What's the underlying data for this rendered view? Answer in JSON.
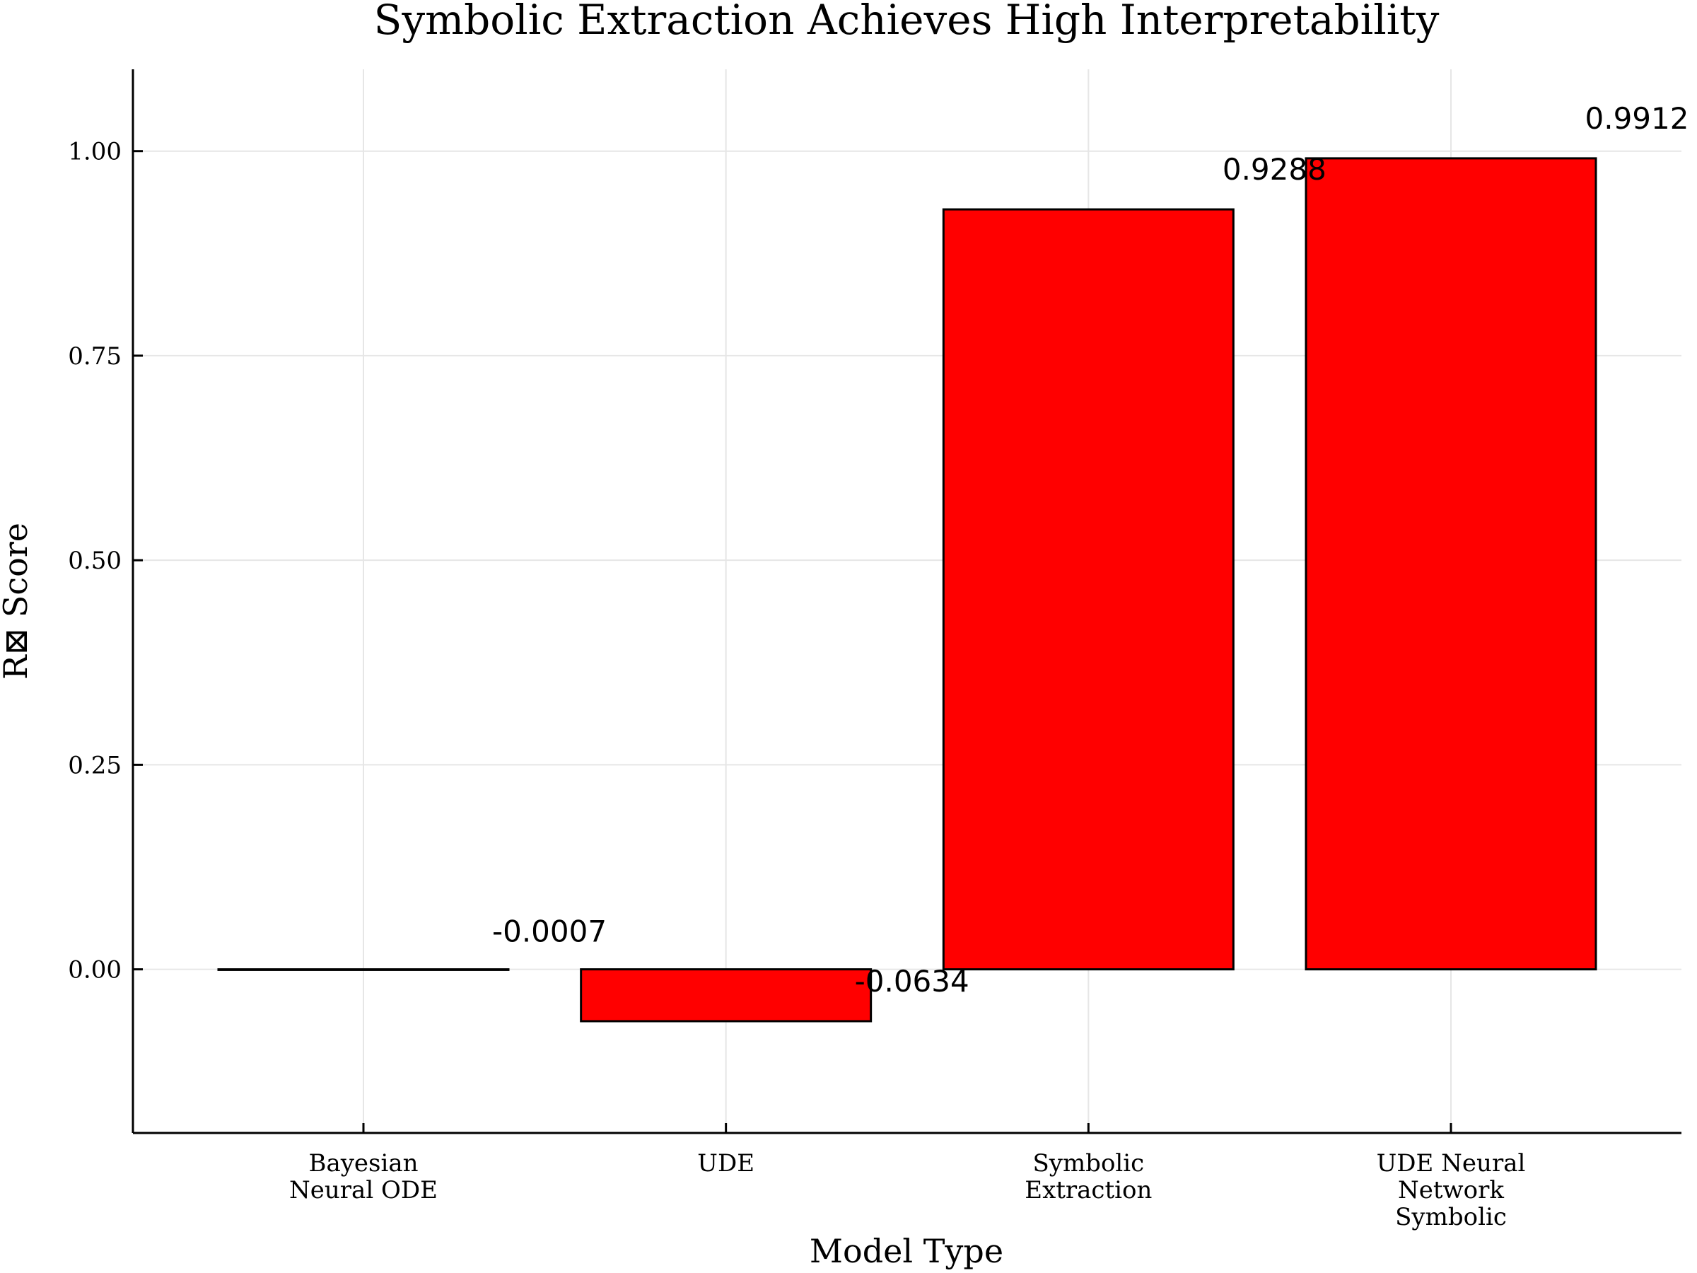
{
  "chart_data": {
    "type": "bar",
    "title": "Symbolic Extraction Achieves High Interpretability",
    "xlabel": "Model Type",
    "ylabel": "R⊠ Score",
    "categories": [
      "Bayesian\nNeural ODE",
      "UDE",
      "Symbolic\nExtraction",
      "UDE Neural\nNetwork\nSymbolic"
    ],
    "values": [
      -0.0007,
      -0.0634,
      0.9288,
      0.9912
    ],
    "data_labels": [
      "-0.0007",
      "-0.0634",
      "0.9288",
      "0.9912"
    ],
    "yticks": [
      0.0,
      0.25,
      0.5,
      0.75,
      1.0
    ],
    "ytick_labels": [
      "0.00",
      "0.25",
      "0.50",
      "0.75",
      "1.00"
    ],
    "ylim": [
      -0.2,
      1.1
    ],
    "grid": true,
    "legend": "none",
    "colors": {
      "bar_fill": "#ff0000",
      "bar_stroke": "#000000",
      "grid": "#e6e6e6",
      "axis": "#000000",
      "text": "#000000"
    }
  }
}
